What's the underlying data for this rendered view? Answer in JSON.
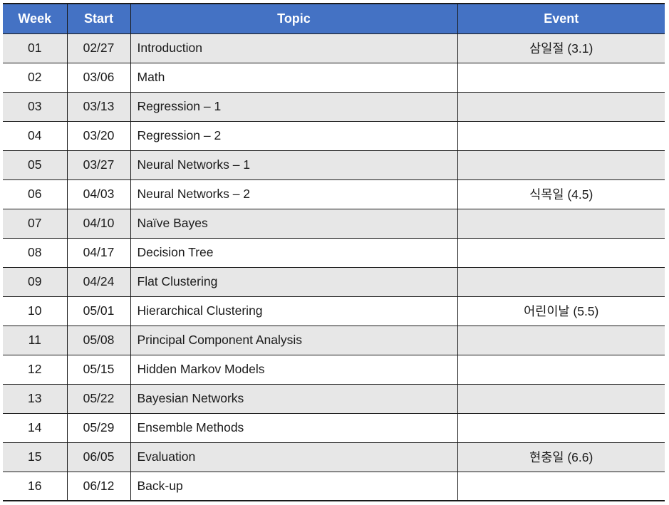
{
  "header": {
    "week": "Week",
    "start": "Start",
    "topic": "Topic",
    "event": "Event"
  },
  "colors": {
    "header_bg": "#4472c4",
    "row_shade": "#e7e7e7",
    "row_plain": "#ffffff"
  },
  "rows": [
    {
      "week": "01",
      "start": "02/27",
      "topic": "Introduction",
      "event": "삼일절 (3.1)"
    },
    {
      "week": "02",
      "start": "03/06",
      "topic": "Math",
      "event": ""
    },
    {
      "week": "03",
      "start": "03/13",
      "topic": "Regression – 1",
      "event": ""
    },
    {
      "week": "04",
      "start": "03/20",
      "topic": "Regression – 2",
      "event": ""
    },
    {
      "week": "05",
      "start": "03/27",
      "topic": "Neural Networks – 1",
      "event": ""
    },
    {
      "week": "06",
      "start": "04/03",
      "topic": "Neural Networks – 2",
      "event": "식목일 (4.5)"
    },
    {
      "week": "07",
      "start": "04/10",
      "topic": "Naïve Bayes",
      "event": ""
    },
    {
      "week": "08",
      "start": "04/17",
      "topic": "Decision Tree",
      "event": ""
    },
    {
      "week": "09",
      "start": "04/24",
      "topic": "Flat Clustering",
      "event": ""
    },
    {
      "week": "10",
      "start": "05/01",
      "topic": "Hierarchical Clustering",
      "event": "어린이날 (5.5)"
    },
    {
      "week": "11",
      "start": "05/08",
      "topic": "Principal Component Analysis",
      "event": ""
    },
    {
      "week": "12",
      "start": "05/15",
      "topic": "Hidden Markov Models",
      "event": ""
    },
    {
      "week": "13",
      "start": "05/22",
      "topic": "Bayesian Networks",
      "event": ""
    },
    {
      "week": "14",
      "start": "05/29",
      "topic": "Ensemble Methods",
      "event": ""
    },
    {
      "week": "15",
      "start": "06/05",
      "topic": "Evaluation",
      "event": "현충일 (6.6)"
    },
    {
      "week": "16",
      "start": "06/12",
      "topic": "Back-up",
      "event": ""
    }
  ]
}
